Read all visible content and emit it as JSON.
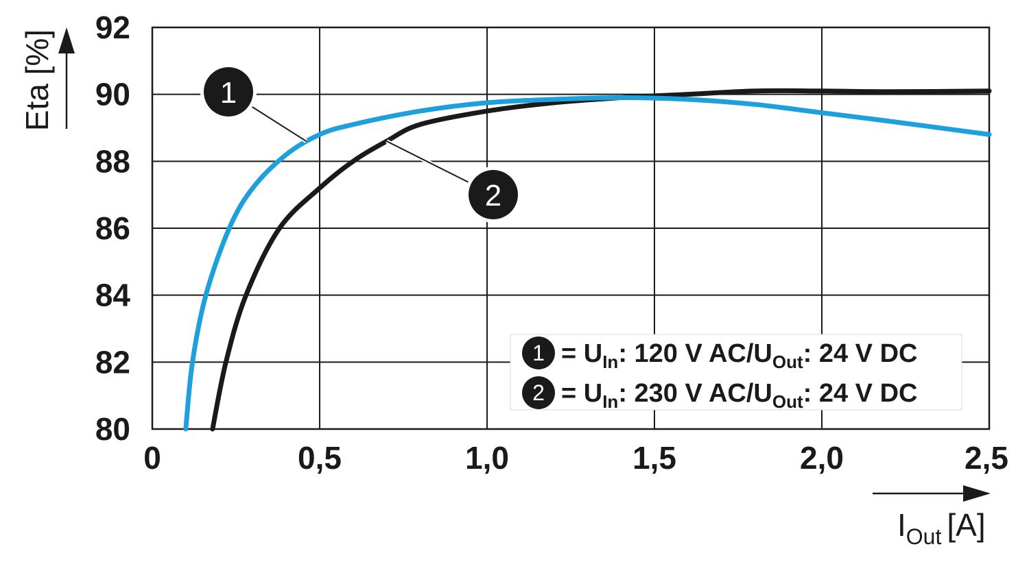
{
  "chart_data": {
    "type": "line",
    "title": "",
    "ylabel": "Eta [%]",
    "xlabel": {
      "main": "I",
      "sub": "Out",
      "unit": "[A]"
    },
    "xlim": [
      0,
      2.5
    ],
    "ylim": [
      80,
      92
    ],
    "x_ticks": [
      0,
      0.5,
      1.0,
      1.5,
      2.0,
      2.5
    ],
    "x_tick_labels": [
      "0",
      "0,5",
      "1,0",
      "1,5",
      "2,0",
      "2,5"
    ],
    "y_ticks": [
      80,
      82,
      84,
      86,
      88,
      90,
      92
    ],
    "y_tick_labels": [
      "80",
      "82",
      "84",
      "86",
      "88",
      "90",
      "92"
    ],
    "grid": true,
    "series": [
      {
        "id": "1",
        "name": "1",
        "color": "#1ea0dc",
        "points": [
          [
            0.1,
            80.0
          ],
          [
            0.12,
            82.0
          ],
          [
            0.16,
            84.0
          ],
          [
            0.23,
            86.0
          ],
          [
            0.3,
            87.2
          ],
          [
            0.4,
            88.2
          ],
          [
            0.5,
            88.8
          ],
          [
            0.6,
            89.1
          ],
          [
            0.8,
            89.5
          ],
          [
            1.0,
            89.75
          ],
          [
            1.2,
            89.85
          ],
          [
            1.4,
            89.9
          ],
          [
            1.6,
            89.85
          ],
          [
            1.8,
            89.7
          ],
          [
            2.0,
            89.45
          ],
          [
            2.2,
            89.2
          ],
          [
            2.5,
            88.8
          ]
        ]
      },
      {
        "id": "2",
        "name": "2",
        "color": "#1a1a1a",
        "points": [
          [
            0.18,
            80.0
          ],
          [
            0.22,
            82.0
          ],
          [
            0.28,
            84.0
          ],
          [
            0.38,
            86.0
          ],
          [
            0.5,
            87.2
          ],
          [
            0.6,
            88.0
          ],
          [
            0.7,
            88.6
          ],
          [
            0.8,
            89.1
          ],
          [
            1.0,
            89.5
          ],
          [
            1.2,
            89.75
          ],
          [
            1.4,
            89.9
          ],
          [
            1.6,
            90.0
          ],
          [
            1.8,
            90.1
          ],
          [
            2.0,
            90.1
          ],
          [
            2.2,
            90.08
          ],
          [
            2.5,
            90.1
          ]
        ]
      }
    ],
    "annotations": [
      {
        "series": "1",
        "label": "1",
        "point": [
          0.46,
          88.6
        ]
      },
      {
        "series": "2",
        "label": "2",
        "point": [
          0.7,
          88.6
        ]
      }
    ],
    "legend": {
      "position": "bottom-right",
      "items": [
        {
          "marker": "1",
          "equals": "=",
          "u_in": "U",
          "u_in_sub": "In",
          "value_in": ": 120 V AC/U",
          "u_out_sub": "Out",
          "value_out": ": 24 V DC"
        },
        {
          "marker": "2",
          "equals": "=",
          "u_in": "U",
          "u_in_sub": "In",
          "value_in": ": 230 V AC/U",
          "u_out_sub": "Out",
          "value_out": ": 24 V DC"
        }
      ]
    }
  }
}
